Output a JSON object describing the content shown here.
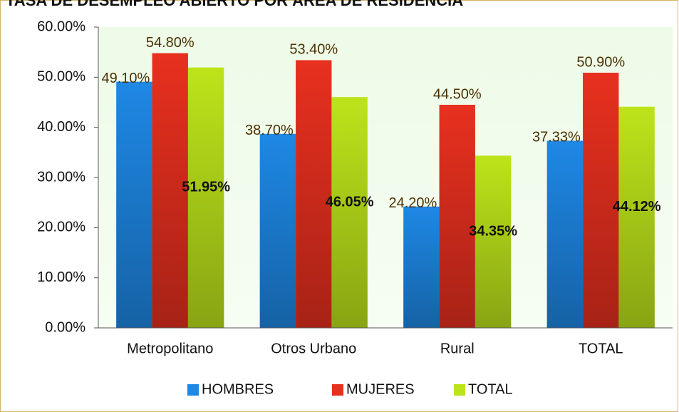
{
  "chart_data": {
    "type": "bar",
    "title": "TASA DE DESEMPLEO ABIERTO POR ÁREA DE RESIDENCIA",
    "categories": [
      "Metropolitano",
      "Otros Urbano",
      "Rural",
      "TOTAL"
    ],
    "series": [
      {
        "name": "HOMBRES",
        "color": "#1e88e5",
        "values": [
          49.1,
          38.7,
          24.2,
          37.33
        ],
        "value_labels": [
          "49.10%",
          "38.70%",
          "24.20%",
          "37.33%"
        ]
      },
      {
        "name": "MUJERES",
        "color": "#e8301f",
        "values": [
          54.8,
          53.4,
          44.5,
          50.9
        ],
        "value_labels": [
          "54.80%",
          "53.40%",
          "44.50%",
          "50.90%"
        ]
      },
      {
        "name": "TOTAL",
        "color": "#bde41a",
        "values": [
          51.95,
          46.05,
          34.35,
          44.12
        ],
        "value_labels": [
          "51.95%",
          "46.05%",
          "34.35%",
          "44.12%"
        ]
      }
    ],
    "ylim": [
      0,
      60
    ],
    "yticks": [
      {
        "value": 0,
        "label": "0.00%"
      },
      {
        "value": 10,
        "label": "10.00%"
      },
      {
        "value": 20,
        "label": "20.00%"
      },
      {
        "value": 30,
        "label": "30.00%"
      },
      {
        "value": 40,
        "label": "40.00%"
      },
      {
        "value": 50,
        "label": "50.00%"
      },
      {
        "value": 60,
        "label": "60.00%"
      }
    ],
    "legend": "bottom"
  }
}
